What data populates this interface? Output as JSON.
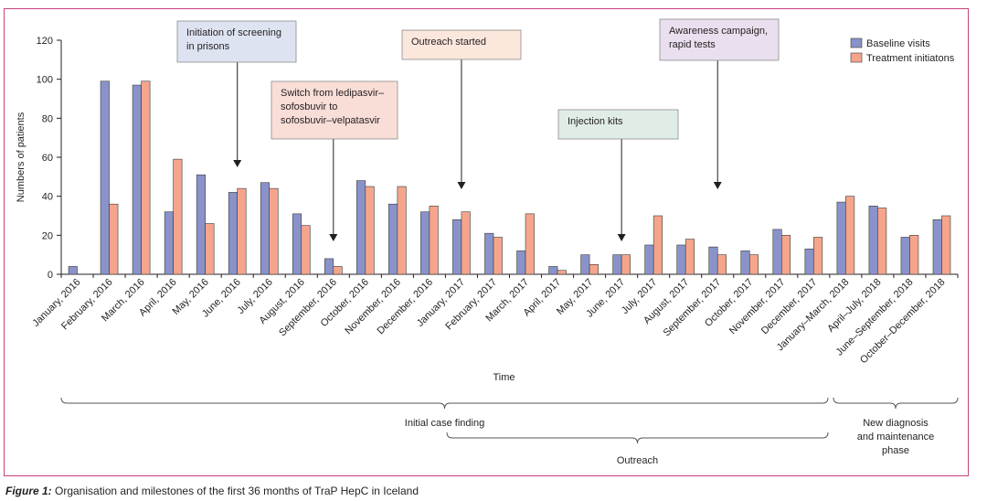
{
  "chart_data": {
    "type": "bar",
    "xlabel": "Time",
    "ylabel": "Numbers of patients",
    "ylim": [
      0,
      120
    ],
    "yticks": [
      0,
      20,
      40,
      60,
      80,
      100,
      120
    ],
    "categories": [
      "January, 2016",
      "February, 2016",
      "March, 2016",
      "April, 2016",
      "May, 2016",
      "June, 2016",
      "July, 2016",
      "August, 2016",
      "September, 2016",
      "October, 2016",
      "November, 2016",
      "December, 2016",
      "January, 2017",
      "February, 2017",
      "March, 2017",
      "April, 2017",
      "May, 2017",
      "June, 2017",
      "July, 2017",
      "August, 2017",
      "September, 2017",
      "October, 2017",
      "November, 2017",
      "December, 2017",
      "January–March, 2018",
      "April–July, 2018",
      "June–September, 2018",
      "October–December, 2018"
    ],
    "series": [
      {
        "name": "Baseline visits",
        "color": "#8a93c9",
        "values": [
          4,
          99,
          97,
          32,
          51,
          42,
          47,
          31,
          8,
          48,
          36,
          32,
          28,
          21,
          12,
          4,
          10,
          10,
          15,
          15,
          14,
          12,
          23,
          13,
          37,
          35,
          19,
          28
        ]
      },
      {
        "name": "Treatment initiatons",
        "color": "#f4a58c",
        "values": [
          0,
          36,
          99,
          59,
          26,
          44,
          44,
          25,
          4,
          45,
          45,
          35,
          32,
          19,
          31,
          2,
          5,
          10,
          30,
          18,
          10,
          10,
          20,
          19,
          40,
          34,
          20,
          30
        ]
      }
    ],
    "legend_position": "top-right",
    "annotations": [
      {
        "text": [
          "Initiation of screening",
          "in prisons"
        ],
        "color": "#dde3f1",
        "target_category": "June, 2016"
      },
      {
        "text": [
          "Switch from ledipasvir–",
          "sofosbuvir to",
          "sofosbuvir–velpatasvir"
        ],
        "color": "#f9ddd7",
        "target_category": "September, 2016"
      },
      {
        "text": [
          "Outreach started"
        ],
        "color": "#fce7dc",
        "target_category": "January, 2017"
      },
      {
        "text": [
          "Injection kits"
        ],
        "color": "#dfede6",
        "target_category": "June, 2017"
      },
      {
        "text": [
          "Awareness campaign,",
          "rapid tests"
        ],
        "color": "#e9dfee",
        "target_category": "September, 2017"
      }
    ],
    "phases": [
      {
        "text": [
          "Initial case finding"
        ],
        "from_category": "January, 2016",
        "to_category": "December, 2017"
      },
      {
        "text": [
          "Outreach"
        ],
        "from_category": "January, 2017",
        "to_category": "December, 2017"
      },
      {
        "text": [
          "New diagnosis",
          "and maintenance",
          "phase"
        ],
        "from_category": "January–March, 2018",
        "to_category": "October–December, 2018"
      }
    ]
  },
  "caption": {
    "label": "Figure 1:",
    "text": " Organisation and milestones of the first 36 months of TraP HepC in Iceland"
  },
  "colors": {
    "frame": "#c9417d",
    "axis": "#231f20",
    "annotation_border": "#8c8c8c"
  }
}
